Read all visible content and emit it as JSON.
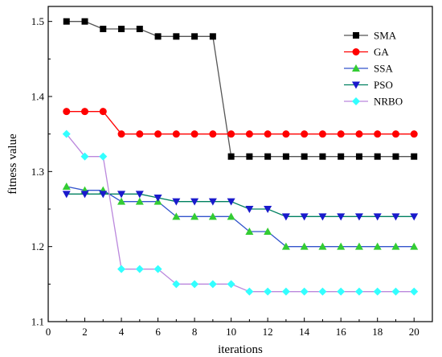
{
  "chart_data": {
    "type": "line",
    "xlabel": "iterations",
    "ylabel": "fitness value",
    "xlim": [
      0,
      21
    ],
    "ylim": [
      1.1,
      1.52
    ],
    "x_ticks": [
      0,
      2,
      4,
      6,
      8,
      10,
      12,
      14,
      16,
      18,
      20
    ],
    "y_ticks": [
      1.1,
      1.2,
      1.3,
      1.4,
      1.5
    ],
    "grid": false,
    "legend": "top-right",
    "x": [
      1,
      2,
      3,
      4,
      5,
      6,
      7,
      8,
      9,
      10,
      11,
      12,
      13,
      14,
      15,
      16,
      17,
      18,
      19,
      20
    ],
    "series": [
      {
        "name": "SMA",
        "color": "#000000",
        "line_color": "#555555",
        "marker": "square",
        "values": [
          1.5,
          1.5,
          1.49,
          1.49,
          1.49,
          1.48,
          1.48,
          1.48,
          1.48,
          1.32,
          1.32,
          1.32,
          1.32,
          1.32,
          1.32,
          1.32,
          1.32,
          1.32,
          1.32,
          1.32
        ]
      },
      {
        "name": "GA",
        "color": "#ff0000",
        "line_color": "#ff0000",
        "marker": "circle",
        "values": [
          1.38,
          1.38,
          1.38,
          1.35,
          1.35,
          1.35,
          1.35,
          1.35,
          1.35,
          1.35,
          1.35,
          1.35,
          1.35,
          1.35,
          1.35,
          1.35,
          1.35,
          1.35,
          1.35,
          1.35
        ]
      },
      {
        "name": "SSA",
        "color": "#33cc33",
        "line_color": "#3355cc",
        "marker": "triangle-up",
        "values": [
          1.28,
          1.275,
          1.275,
          1.26,
          1.26,
          1.26,
          1.24,
          1.24,
          1.24,
          1.24,
          1.22,
          1.22,
          1.2,
          1.2,
          1.2,
          1.2,
          1.2,
          1.2,
          1.2,
          1.2
        ]
      },
      {
        "name": "PSO",
        "color": "#1a1acc",
        "line_color": "#008060",
        "marker": "triangle-down",
        "values": [
          1.27,
          1.27,
          1.27,
          1.27,
          1.27,
          1.265,
          1.26,
          1.26,
          1.26,
          1.26,
          1.25,
          1.25,
          1.24,
          1.24,
          1.24,
          1.24,
          1.24,
          1.24,
          1.24,
          1.24
        ]
      },
      {
        "name": "NRBO",
        "color": "#33ffff",
        "line_color": "#bb88dd",
        "marker": "diamond",
        "values": [
          1.35,
          1.32,
          1.32,
          1.17,
          1.17,
          1.17,
          1.15,
          1.15,
          1.15,
          1.15,
          1.14,
          1.14,
          1.14,
          1.14,
          1.14,
          1.14,
          1.14,
          1.14,
          1.14,
          1.14
        ]
      }
    ]
  }
}
